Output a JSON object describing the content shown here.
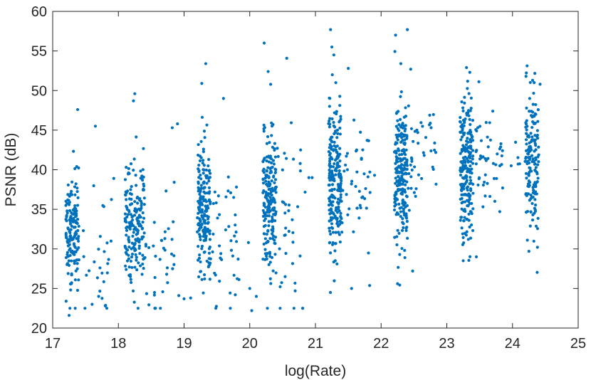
{
  "chart_data": {
    "type": "scatter",
    "title": "",
    "xlabel": "log(Rate)",
    "ylabel": "PSNR (dB)",
    "xlim": [
      17,
      25
    ],
    "ylim": [
      20,
      60
    ],
    "xticks": [
      "17",
      "18",
      "19",
      "20",
      "21",
      "22",
      "23",
      "24",
      "25"
    ],
    "yticks": [
      "20",
      "25",
      "30",
      "35",
      "40",
      "45",
      "50",
      "55",
      "60"
    ],
    "grid": false,
    "legend": "none",
    "marker_color": "#0072BD",
    "clusters": [
      {
        "x_min": 17.2,
        "x_max": 17.4,
        "y_mean": 32.5,
        "y_sd": 3.3,
        "n": 160,
        "tail": {
          "x_min": 17.4,
          "x_max": 17.9,
          "y_mean": 29,
          "y_sd": 4.5,
          "n": 25
        },
        "outliers": [
          [
            17.25,
            21.6
          ],
          [
            17.38,
            47.6
          ],
          [
            17.65,
            45.5
          ],
          [
            17.6,
            23
          ],
          [
            17.7,
            24
          ],
          [
            17.72,
            27.6
          ],
          [
            17.8,
            22.8
          ],
          [
            17.93,
            38.9
          ]
        ]
      },
      {
        "x_min": 18.1,
        "x_max": 18.4,
        "y_mean": 33.5,
        "y_sd": 3.8,
        "n": 190,
        "tail": {
          "x_min": 18.4,
          "x_max": 18.85,
          "y_mean": 29,
          "y_sd": 4.5,
          "n": 35
        },
        "outliers": [
          [
            18.25,
            49.6
          ],
          [
            18.23,
            48.7
          ],
          [
            18.55,
            24.5
          ],
          [
            18.82,
            45.3
          ],
          [
            18.9,
            45.8
          ],
          [
            18.92,
            24.1
          ]
        ]
      },
      {
        "x_min": 19.2,
        "x_max": 19.4,
        "y_mean": 35,
        "y_sd": 4.2,
        "n": 190,
        "tail": {
          "x_min": 19.4,
          "x_max": 19.85,
          "y_mean": 32,
          "y_sd": 6,
          "n": 40
        },
        "outliers": [
          [
            19.33,
            53.4
          ],
          [
            19.27,
            50.9
          ],
          [
            19.6,
            49
          ],
          [
            19.0,
            23.7
          ],
          [
            19.1,
            23.8
          ],
          [
            19.78,
            24.2
          ]
        ]
      },
      {
        "x_min": 20.2,
        "x_max": 20.4,
        "y_mean": 36.5,
        "y_sd": 4.5,
        "n": 200,
        "tail": {
          "x_min": 20.4,
          "x_max": 20.85,
          "y_mean": 36,
          "y_sd": 6,
          "n": 40
        },
        "outliers": [
          [
            20.22,
            56
          ],
          [
            20.28,
            52.4
          ],
          [
            20.0,
            25
          ],
          [
            20.03,
            22.2
          ],
          [
            20.1,
            24
          ],
          [
            19.98,
            30.8
          ],
          [
            20.9,
            39
          ],
          [
            20.95,
            39
          ]
        ]
      },
      {
        "x_min": 21.2,
        "x_max": 21.4,
        "y_mean": 38,
        "y_sd": 4.5,
        "n": 220,
        "tail": {
          "x_min": 21.4,
          "x_max": 21.85,
          "y_mean": 38.5,
          "y_sd": 5,
          "n": 40
        },
        "outliers": [
          [
            21.23,
            57.7
          ],
          [
            21.25,
            55.5
          ],
          [
            21.28,
            54.5
          ],
          [
            21.5,
            52.8
          ],
          [
            21.55,
            25
          ],
          [
            21.68,
            35.5
          ],
          [
            21.8,
            39.1
          ],
          [
            21.9,
            39.3
          ]
        ]
      },
      {
        "x_min": 22.2,
        "x_max": 22.4,
        "y_mean": 39.5,
        "y_sd": 4.5,
        "n": 220,
        "tail": {
          "x_min": 22.4,
          "x_max": 22.85,
          "y_mean": 41.5,
          "y_sd": 4,
          "n": 40
        },
        "outliers": [
          [
            22.22,
            57
          ],
          [
            22.4,
            57.7
          ],
          [
            22.25,
            25.6
          ],
          [
            22.3,
            53.4
          ],
          [
            22.45,
            52.7
          ],
          [
            22.48,
            27.2
          ]
        ]
      },
      {
        "x_min": 23.2,
        "x_max": 23.4,
        "y_mean": 40.5,
        "y_sd": 4.3,
        "n": 220,
        "tail": {
          "x_min": 23.4,
          "x_max": 23.85,
          "y_mean": 41.5,
          "y_sd": 3,
          "n": 45
        },
        "outliers": [
          [
            23.3,
            52.9
          ],
          [
            23.35,
            52.3
          ],
          [
            23.25,
            28.5
          ],
          [
            23.45,
            29
          ],
          [
            23.7,
            47.4
          ],
          [
            23.85,
            37.7
          ]
        ]
      },
      {
        "x_min": 24.2,
        "x_max": 24.4,
        "y_mean": 41.5,
        "y_sd": 4.5,
        "n": 160,
        "tail": {
          "x_min": 24.0,
          "x_max": 24.2,
          "y_mean": 40,
          "y_sd": 1.5,
          "n": 5
        },
        "outliers": [
          [
            24.33,
            51
          ],
          [
            24.42,
            50.8
          ],
          [
            24.25,
            29.7
          ],
          [
            24.38,
            30.2
          ],
          [
            23.98,
            40.5
          ]
        ]
      }
    ]
  }
}
